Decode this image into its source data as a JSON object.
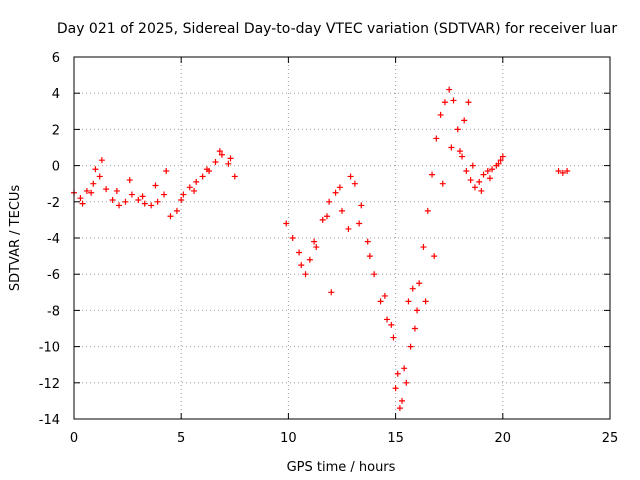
{
  "chart_data": {
    "type": "scatter",
    "title": "Day 021 of 2025, Sidereal Day-to-day VTEC variation (SDTVAR) for receiver luar",
    "xlabel": "GPS time / hours",
    "ylabel": "SDTVAR / TECUs",
    "xlim": [
      0,
      25
    ],
    "ylim": [
      -14,
      6
    ],
    "xticks": [
      0,
      5,
      10,
      15,
      20,
      25
    ],
    "yticks": [
      -14,
      -12,
      -10,
      -8,
      -6,
      -4,
      -2,
      0,
      2,
      4,
      6
    ],
    "grid": true,
    "marker": "+",
    "color": "#ff0000",
    "series": [
      {
        "name": "SDTVAR",
        "x": [
          0.0,
          0.3,
          0.6,
          0.9,
          1.2,
          1.5,
          1.8,
          2.1,
          2.4,
          2.7,
          3.0,
          3.3,
          3.6,
          3.9,
          4.2,
          4.5,
          4.8,
          5.1,
          5.4,
          5.7,
          6.0,
          6.3,
          6.6,
          6.9,
          7.2,
          7.5,
          0.4,
          0.8,
          1.0,
          1.3,
          2.0,
          2.6,
          3.2,
          3.8,
          4.3,
          5.0,
          5.6,
          6.2,
          6.8,
          7.3,
          9.9,
          10.2,
          10.5,
          10.8,
          11.0,
          11.3,
          11.6,
          11.9,
          12.2,
          12.5,
          12.8,
          13.1,
          13.4,
          13.7,
          14.0,
          14.3,
          14.6,
          14.9,
          15.1,
          15.3,
          15.5,
          15.7,
          15.9,
          16.1,
          16.3,
          16.5,
          16.7,
          16.9,
          17.1,
          17.3,
          17.5,
          17.7,
          17.9,
          18.1,
          18.3,
          18.5,
          18.7,
          18.9,
          19.1,
          19.3,
          19.5,
          19.7,
          19.9,
          20.0,
          10.6,
          11.2,
          11.8,
          12.4,
          12.0,
          12.9,
          13.3,
          13.8,
          14.5,
          14.8,
          15.0,
          15.2,
          15.4,
          15.6,
          15.8,
          16.0,
          16.4,
          16.8,
          17.2,
          17.6,
          18.0,
          18.2,
          18.4,
          18.6,
          19.0,
          19.4,
          19.8,
          22.6,
          22.8,
          23.0
        ],
        "y": [
          -1.5,
          -1.8,
          -1.4,
          -1.0,
          -0.6,
          -1.3,
          -1.9,
          -2.2,
          -2.0,
          -1.6,
          -1.9,
          -2.1,
          -2.2,
          -2.0,
          -1.6,
          -2.8,
          -2.5,
          -1.6,
          -1.2,
          -0.9,
          -0.6,
          -0.3,
          0.2,
          0.6,
          0.1,
          -0.6,
          -2.1,
          -1.5,
          -0.2,
          0.3,
          -1.4,
          -0.8,
          -1.7,
          -1.1,
          -0.3,
          -1.9,
          -1.4,
          -0.2,
          0.8,
          0.4,
          -3.2,
          -4.0,
          -4.8,
          -6.0,
          -5.2,
          -4.5,
          -3.0,
          -2.0,
          -1.5,
          -2.5,
          -3.5,
          -1.0,
          -2.2,
          -4.2,
          -6.0,
          -7.5,
          -8.5,
          -9.5,
          -11.5,
          -13.0,
          -12.0,
          -10.0,
          -9.0,
          -6.5,
          -4.5,
          -2.5,
          -0.5,
          1.5,
          2.8,
          3.5,
          4.2,
          3.6,
          2.0,
          0.5,
          -0.3,
          -0.8,
          -1.2,
          -0.9,
          -0.5,
          -0.3,
          -0.2,
          0.0,
          0.3,
          0.5,
          -5.5,
          -4.2,
          -2.8,
          -1.2,
          -7.0,
          -0.6,
          -3.2,
          -5.0,
          -7.2,
          -8.8,
          -12.3,
          -13.4,
          -11.2,
          -7.5,
          -6.8,
          -8.0,
          -7.5,
          -5.0,
          -1.0,
          1.0,
          0.8,
          2.5,
          3.5,
          0.0,
          -1.4,
          -0.7,
          0.1,
          -0.3,
          -0.4,
          -0.3
        ]
      }
    ]
  }
}
